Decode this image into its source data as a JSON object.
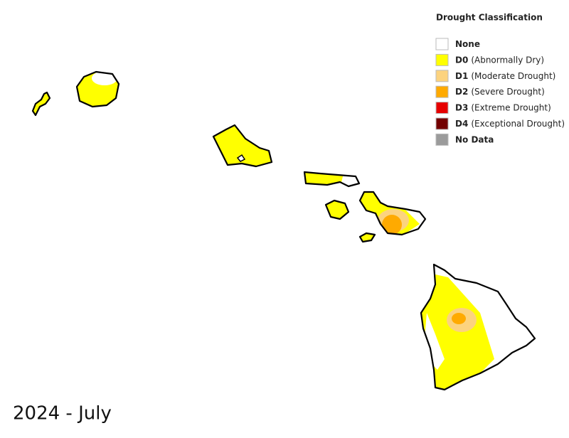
{
  "legend": {
    "title": "Drought Classification",
    "items": [
      {
        "code": "None",
        "color": "#ffffff"
      },
      {
        "code": "D0",
        "label": "(Abnormally Dry)",
        "color": "#ffff00"
      },
      {
        "code": "D1",
        "label": "(Moderate Drought)",
        "color": "#fcd37f"
      },
      {
        "code": "D2",
        "label": "(Severe Drought)",
        "color": "#ffaa00"
      },
      {
        "code": "D3",
        "label": "(Extreme Drought)",
        "color": "#e60000"
      },
      {
        "code": "D4",
        "label": "(Exceptional Drought)",
        "color": "#730000"
      },
      {
        "code": "No Data",
        "color": "#9b9b9b"
      }
    ]
  },
  "date": "2024 - July"
}
